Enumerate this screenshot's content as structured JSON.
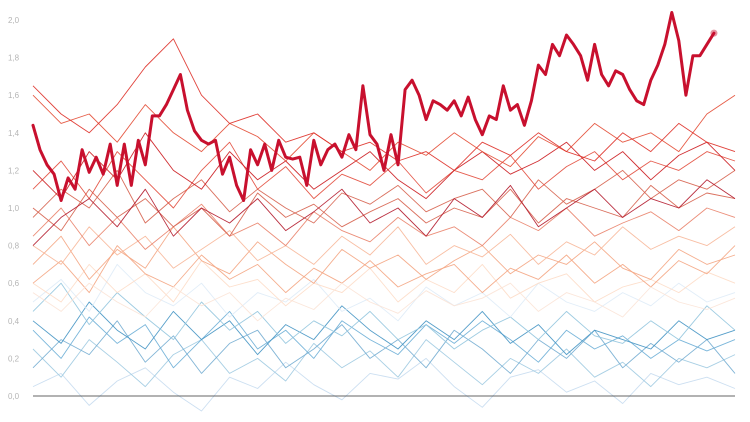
{
  "chart_data": {
    "type": "line",
    "title": "",
    "xlabel": "",
    "ylabel": "",
    "ylim": [
      0,
      2.0
    ],
    "xlim": [
      0,
      100
    ],
    "yticks": [
      "0,0",
      "0,2",
      "0,4",
      "0,6",
      "0,8",
      "1,0",
      "1,2",
      "1,4",
      "1,6",
      "1,8",
      "2,0"
    ],
    "ytick_values": [
      0,
      0.2,
      0.4,
      0.6,
      0.8,
      1.0,
      1.2,
      1.4,
      1.6,
      1.8,
      2.0
    ],
    "grid": false,
    "baseline": 0,
    "colors": {
      "highlight": "#c8102e",
      "axis": "#333333"
    },
    "background_x_step": 4,
    "background_series": [
      {
        "color": "#c6dbef",
        "values": [
          0.05,
          0.12,
          -0.05,
          0.08,
          0.15,
          0.02,
          -0.08,
          0.1,
          0.04,
          0.18,
          0.06,
          -0.02,
          0.12,
          0.09,
          0.2,
          0.05,
          -0.06,
          0.1,
          0.14,
          0.02,
          0.08,
          -0.04,
          0.12,
          0.06,
          0.1,
          0.04
        ]
      },
      {
        "color": "#9ecae1",
        "values": [
          0.25,
          0.1,
          0.3,
          0.18,
          0.05,
          0.22,
          0.3,
          0.12,
          0.2,
          0.08,
          0.28,
          0.15,
          0.24,
          0.1,
          0.3,
          0.18,
          0.06,
          0.2,
          0.12,
          0.25,
          0.1,
          0.18,
          0.05,
          0.2,
          0.15,
          0.22
        ]
      },
      {
        "color": "#6baed6",
        "values": [
          0.35,
          0.2,
          0.42,
          0.28,
          0.38,
          0.15,
          0.3,
          0.45,
          0.25,
          0.35,
          0.2,
          0.4,
          0.3,
          0.22,
          0.38,
          0.28,
          0.4,
          0.3,
          0.18,
          0.35,
          0.25,
          0.32,
          0.2,
          0.3,
          0.24,
          0.3
        ]
      },
      {
        "color": "#74add1",
        "values": [
          0.15,
          0.3,
          0.22,
          0.4,
          0.18,
          0.32,
          0.12,
          0.28,
          0.35,
          0.15,
          0.25,
          0.38,
          0.2,
          0.3,
          0.15,
          0.35,
          0.25,
          0.12,
          0.3,
          0.2,
          0.35,
          0.15,
          0.28,
          0.18,
          0.3,
          0.12
        ]
      },
      {
        "color": "#4393c3",
        "values": [
          0.4,
          0.28,
          0.5,
          0.35,
          0.25,
          0.45,
          0.3,
          0.4,
          0.22,
          0.38,
          0.3,
          0.48,
          0.35,
          0.25,
          0.4,
          0.3,
          0.45,
          0.28,
          0.38,
          0.22,
          0.35,
          0.3,
          0.25,
          0.4,
          0.3,
          0.35
        ]
      },
      {
        "color": "#92c5de",
        "values": [
          0.45,
          0.6,
          0.38,
          0.55,
          0.42,
          0.3,
          0.5,
          0.35,
          0.45,
          0.28,
          0.4,
          0.32,
          0.45,
          0.3,
          0.38,
          0.25,
          0.35,
          0.42,
          0.3,
          0.45,
          0.32,
          0.28,
          0.4,
          0.3,
          0.48,
          0.35
        ]
      },
      {
        "color": "#deebf7",
        "values": [
          0.5,
          0.62,
          0.45,
          0.7,
          0.55,
          0.48,
          0.6,
          0.42,
          0.55,
          0.5,
          0.62,
          0.45,
          0.52,
          0.4,
          0.58,
          0.48,
          0.55,
          0.42,
          0.6,
          0.5,
          0.45,
          0.55,
          0.48,
          0.6,
          0.5,
          0.55
        ]
      },
      {
        "color": "#fddbc7",
        "values": [
          0.6,
          0.5,
          0.7,
          0.55,
          0.65,
          0.5,
          0.72,
          0.58,
          0.62,
          0.48,
          0.6,
          0.55,
          0.68,
          0.5,
          0.62,
          0.55,
          0.7,
          0.52,
          0.6,
          0.65,
          0.5,
          0.58,
          0.62,
          0.55,
          0.66,
          0.6
        ]
      },
      {
        "color": "#f4a582",
        "values": [
          0.7,
          0.85,
          0.62,
          0.78,
          0.68,
          0.9,
          0.72,
          0.65,
          0.82,
          0.7,
          0.6,
          0.78,
          0.68,
          0.75,
          0.62,
          0.72,
          0.8,
          0.65,
          0.75,
          0.7,
          0.82,
          0.68,
          0.62,
          0.78,
          0.7,
          0.75
        ]
      },
      {
        "color": "#f4a582",
        "values": [
          0.6,
          0.72,
          0.55,
          0.8,
          0.65,
          0.58,
          0.75,
          0.62,
          0.7,
          0.55,
          0.68,
          0.6,
          0.72,
          0.58,
          0.65,
          0.7,
          0.55,
          0.68,
          0.62,
          0.75,
          0.6,
          0.7,
          0.58,
          0.72,
          0.65,
          0.8
        ]
      },
      {
        "color": "#f7b799",
        "values": [
          0.8,
          0.7,
          0.9,
          0.75,
          0.85,
          0.68,
          0.78,
          0.88,
          0.72,
          0.8,
          0.7,
          0.85,
          0.75,
          0.9,
          0.7,
          0.8,
          0.74,
          0.86,
          0.7,
          0.82,
          0.75,
          0.9,
          0.78,
          0.85,
          0.8,
          0.9
        ]
      },
      {
        "color": "#e9826a",
        "values": [
          0.85,
          1.0,
          0.8,
          0.95,
          0.78,
          0.9,
          1.02,
          0.85,
          0.92,
          0.8,
          0.98,
          0.88,
          0.82,
          0.95,
          0.85,
          0.9,
          0.8,
          0.95,
          0.88,
          1.0,
          0.85,
          0.92,
          0.98,
          0.88,
          1.0,
          0.95
        ]
      },
      {
        "color": "#d6604d",
        "values": [
          1.0,
          0.88,
          1.1,
          0.95,
          1.05,
          0.9,
          1.0,
          0.85,
          1.08,
          0.95,
          1.02,
          0.9,
          0.98,
          1.05,
          0.92,
          1.0,
          0.95,
          1.1,
          0.92,
          1.05,
          1.0,
          0.95,
          1.12,
          1.0,
          1.08,
          1.05
        ]
      },
      {
        "color": "#d6604d",
        "values": [
          0.95,
          1.1,
          1.0,
          1.2,
          0.92,
          1.05,
          1.15,
          0.98,
          1.1,
          1.0,
          0.92,
          1.08,
          1.02,
          1.12,
          0.98,
          1.05,
          1.1,
          0.95,
          1.15,
          1.02,
          1.1,
          1.2,
          1.05,
          1.15,
          1.1,
          1.2
        ]
      },
      {
        "color": "#e24a3b",
        "values": [
          1.1,
          1.25,
          1.05,
          1.3,
          1.15,
          1.0,
          1.2,
          1.35,
          1.1,
          1.22,
          1.05,
          1.18,
          1.12,
          1.25,
          1.08,
          1.2,
          1.15,
          1.28,
          1.1,
          1.22,
          1.3,
          1.15,
          1.25,
          1.2,
          1.3,
          1.25
        ]
      },
      {
        "color": "#cb181d",
        "values": [
          1.2,
          1.05,
          1.3,
          1.15,
          1.4,
          1.2,
          1.1,
          1.3,
          1.15,
          1.25,
          1.1,
          1.2,
          1.3,
          1.15,
          1.05,
          1.2,
          1.3,
          1.18,
          1.25,
          1.35,
          1.2,
          1.3,
          1.15,
          1.28,
          1.35,
          1.2
        ]
      },
      {
        "color": "#e34a33",
        "values": [
          1.6,
          1.45,
          1.5,
          1.35,
          1.55,
          1.4,
          1.3,
          1.45,
          1.38,
          1.25,
          1.4,
          1.3,
          1.2,
          1.35,
          1.28,
          1.4,
          1.3,
          1.22,
          1.38,
          1.3,
          1.45,
          1.35,
          1.4,
          1.3,
          1.5,
          1.6
        ]
      },
      {
        "color": "#de2d26",
        "values": [
          1.65,
          1.5,
          1.4,
          1.55,
          1.75,
          1.9,
          1.6,
          1.45,
          1.5,
          1.35,
          1.4,
          1.3,
          1.35,
          1.25,
          1.3,
          1.2,
          1.35,
          1.28,
          1.4,
          1.3,
          1.25,
          1.4,
          1.3,
          1.45,
          1.35,
          1.3
        ]
      },
      {
        "color": "#b2182b",
        "values": [
          0.8,
          0.95,
          1.05,
          0.9,
          1.1,
          0.85,
          1.0,
          0.92,
          1.05,
          0.88,
          0.98,
          1.1,
          0.92,
          1.0,
          0.85,
          1.05,
          0.95,
          1.12,
          0.9,
          1.0,
          1.1,
          0.95,
          1.05,
          1.0,
          1.15,
          1.05
        ]
      },
      {
        "color": "#fbe3d6",
        "values": [
          0.55,
          0.45,
          0.6,
          0.5,
          0.42,
          0.58,
          0.48,
          0.55,
          0.4,
          0.52,
          0.46,
          0.6,
          0.5,
          0.44,
          0.56,
          0.48,
          0.52,
          0.6,
          0.45,
          0.55,
          0.5,
          0.42,
          0.58,
          0.5,
          0.46,
          0.52
        ]
      }
    ],
    "highlight_series": {
      "color": "#c8102e",
      "values": [
        1.44,
        1.31,
        1.23,
        1.18,
        1.04,
        1.16,
        1.1,
        1.31,
        1.19,
        1.27,
        1.18,
        1.34,
        1.12,
        1.34,
        1.12,
        1.36,
        1.23,
        1.49,
        1.49,
        1.55,
        1.63,
        1.71,
        1.52,
        1.41,
        1.36,
        1.34,
        1.36,
        1.18,
        1.27,
        1.12,
        1.04,
        1.31,
        1.23,
        1.34,
        1.2,
        1.36,
        1.27,
        1.26,
        1.27,
        1.12,
        1.36,
        1.23,
        1.31,
        1.34,
        1.27,
        1.39,
        1.31,
        1.65,
        1.39,
        1.34,
        1.2,
        1.39,
        1.23,
        1.63,
        1.68,
        1.6,
        1.47,
        1.57,
        1.55,
        1.52,
        1.57,
        1.49,
        1.59,
        1.47,
        1.39,
        1.49,
        1.47,
        1.65,
        1.52,
        1.55,
        1.44,
        1.57,
        1.76,
        1.71,
        1.87,
        1.81,
        1.92,
        1.87,
        1.81,
        1.68,
        1.87,
        1.71,
        1.65,
        1.73,
        1.71,
        1.63,
        1.57,
        1.55,
        1.68,
        1.76,
        1.87,
        2.04,
        1.89,
        1.6,
        1.81,
        1.81,
        1.87,
        1.93
      ]
    }
  }
}
